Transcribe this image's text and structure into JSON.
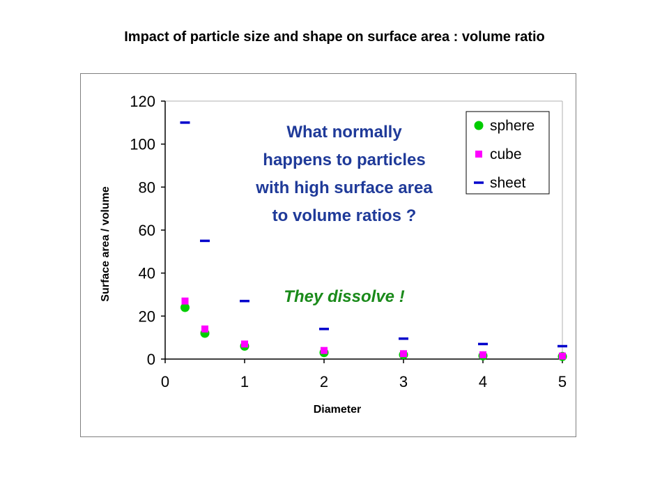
{
  "slide": {
    "title": "Impact of particle size and shape on surface area : volume ratio",
    "question": "What normally happens to particles with high surface area to volume ratios ?",
    "answer": "They dissolve !"
  },
  "chart_data": {
    "type": "scatter",
    "title": "",
    "xlabel": "Diameter",
    "ylabel": "Surface area / volume",
    "xlim": [
      0,
      5
    ],
    "ylim": [
      0,
      120
    ],
    "x_ticks": [
      0,
      1,
      2,
      3,
      4,
      5
    ],
    "y_ticks": [
      0,
      20,
      40,
      60,
      80,
      100,
      120
    ],
    "grid": false,
    "legend": "top-right",
    "series": [
      {
        "name": "sphere",
        "marker": "circle",
        "color": "#00cc00",
        "x": [
          0.25,
          0.5,
          1,
          2,
          3,
          4,
          5
        ],
        "y": [
          24,
          12,
          6,
          3,
          2,
          1.5,
          1.2
        ]
      },
      {
        "name": "cube",
        "marker": "square",
        "color": "#ff00ff",
        "x": [
          0.25,
          0.5,
          1,
          2,
          3,
          4,
          5
        ],
        "y": [
          27,
          14,
          7,
          4,
          2.5,
          2,
          1.4
        ]
      },
      {
        "name": "sheet",
        "marker": "dash",
        "color": "#0000cc",
        "x": [
          0.25,
          0.5,
          1,
          2,
          3,
          4,
          5
        ],
        "y": [
          110,
          55,
          27,
          14,
          9.5,
          7,
          6
        ]
      }
    ]
  }
}
